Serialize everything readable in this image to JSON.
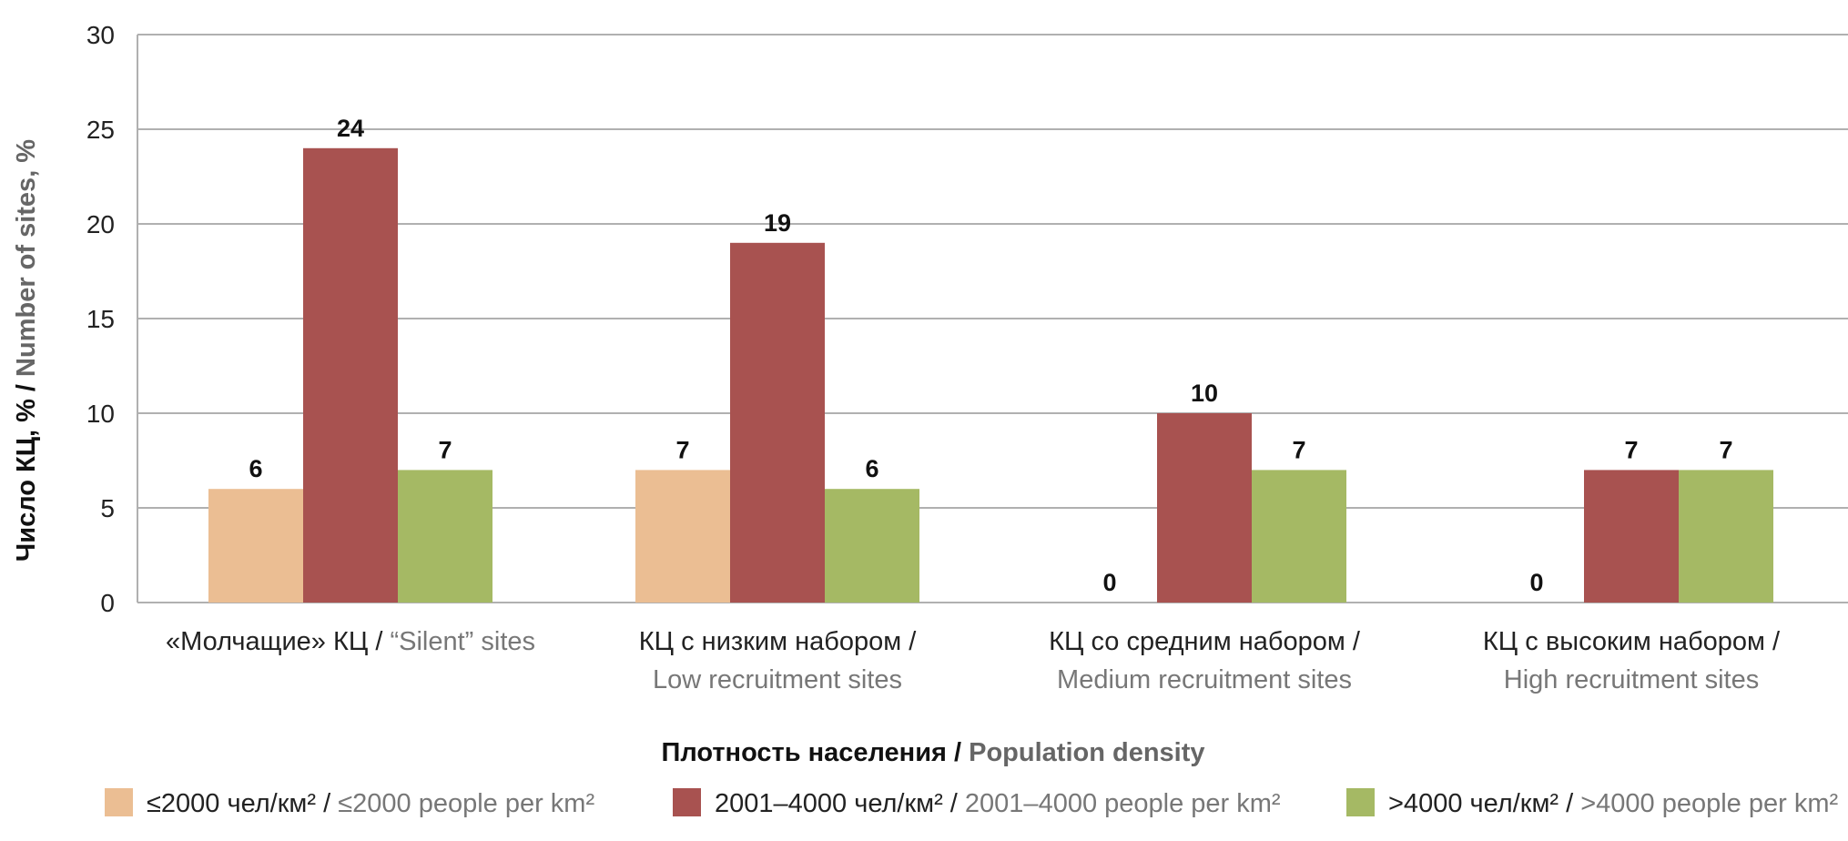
{
  "chart_data": {
    "type": "bar",
    "categories": [
      {
        "ru": "«Молчащие» КЦ / ",
        "en": "“Silent” sites"
      },
      {
        "ru": "КЦ с низким набором /",
        "en": "Low recruitment sites"
      },
      {
        "ru": "КЦ со средним набором /",
        "en": "Medium recruitment sites"
      },
      {
        "ru": "КЦ с высоким набором /",
        "en": "High recruitment sites"
      }
    ],
    "series": [
      {
        "name_ru": "≤2000 чел/км² / ",
        "name_en": "≤2000 people per km²",
        "color": "#EBBE93",
        "values": [
          6,
          7,
          0,
          0
        ]
      },
      {
        "name_ru": "2001–4000 чел/км² / ",
        "name_en": "2001–4000 people per km²",
        "color": "#A85250",
        "values": [
          24,
          19,
          10,
          7
        ]
      },
      {
        "name_ru": ">4000 чел/км² / ",
        "name_en": ">4000 people per km²",
        "color": "#A5B964",
        "values": [
          7,
          6,
          7,
          7
        ]
      }
    ],
    "ylabel_ru": "Число КЦ, % / ",
    "ylabel_en": "Number of sites, %",
    "xlabel_ru": "Плотность населения / ",
    "xlabel_en": "Population density",
    "ylim": [
      0,
      30
    ],
    "yticks": [
      0,
      5,
      10,
      15,
      20,
      25,
      30
    ],
    "grid": true,
    "legend": "bottom"
  }
}
